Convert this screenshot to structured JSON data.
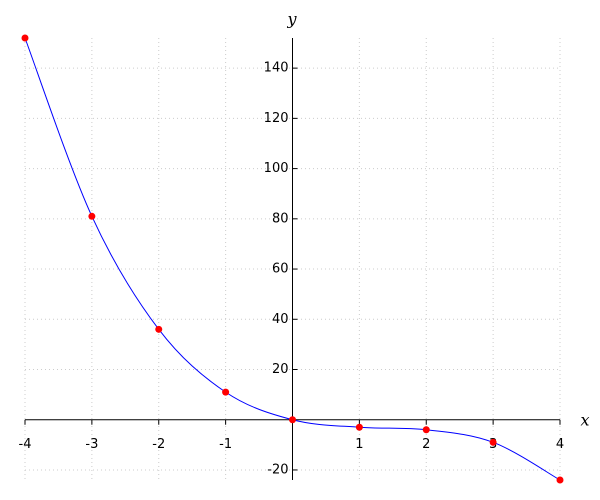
{
  "chart_data": {
    "type": "line",
    "x_label": "x",
    "y_label": "y",
    "x": [
      -4,
      -3,
      -2,
      -1,
      0,
      1,
      2,
      3,
      4
    ],
    "series": [
      {
        "color": "#0000ff",
        "marker_color": "#ff0000",
        "values": [
          152,
          81,
          36,
          11,
          0,
          -3,
          -4,
          -9,
          -24
        ]
      }
    ],
    "xlim": [
      -4,
      4
    ],
    "ylim": [
      -24,
      152
    ],
    "xticks": [
      -4,
      -3,
      -2,
      -1,
      1,
      2,
      3,
      4
    ],
    "yticks": [
      -20,
      20,
      40,
      60,
      80,
      100,
      120,
      140
    ],
    "grid": true
  }
}
